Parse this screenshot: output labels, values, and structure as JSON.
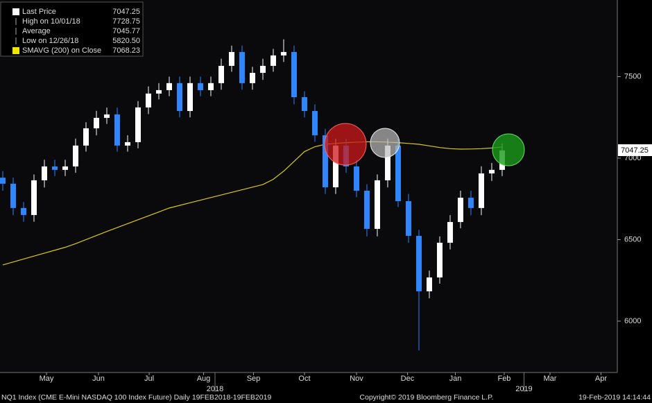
{
  "chart_data": {
    "type": "candlestick",
    "x": [
      0,
      1,
      2,
      3,
      4,
      5,
      6,
      7,
      8,
      9,
      10,
      11,
      12,
      13,
      14,
      15,
      16,
      17,
      18,
      19,
      20,
      21,
      22,
      23,
      24,
      25,
      26,
      27,
      28,
      29,
      30,
      31,
      32,
      33,
      34,
      35,
      36,
      37,
      38,
      39,
      40,
      41,
      42,
      43,
      44,
      45,
      46,
      47,
      48
    ],
    "open": [
      6880,
      6843,
      6694,
      6651,
      6864,
      6949,
      6928,
      6949,
      7077,
      7183,
      7247,
      7268,
      7077,
      7098,
      7311,
      7396,
      7417,
      7460,
      7289,
      7460,
      7417,
      7460,
      7566,
      7651,
      7460,
      7523,
      7566,
      7630,
      7651,
      7374,
      7289,
      7140,
      6821,
      7077,
      6949,
      6800,
      6566,
      6864,
      7077,
      6736,
      6523,
      6183,
      6268,
      6481,
      6608,
      6757,
      6694,
      6906,
      6928
    ],
    "high": [
      6920,
      6880,
      6730,
      6900,
      6990,
      6990,
      6990,
      7120,
      7220,
      7290,
      7310,
      7310,
      7140,
      7350,
      7440,
      7460,
      7500,
      7500,
      7500,
      7500,
      7500,
      7610,
      7690,
      7690,
      7560,
      7610,
      7670,
      7728.75,
      7690,
      7410,
      7330,
      7180,
      7120,
      7120,
      6990,
      6840,
      6900,
      7120,
      7120,
      6780,
      6560,
      6310,
      6520,
      6650,
      6800,
      6800,
      6950,
      6970,
      7090
    ],
    "low": [
      6800,
      6650,
      6610,
      6610,
      6820,
      6890,
      6890,
      6910,
      7040,
      7140,
      7210,
      7040,
      7040,
      7060,
      7270,
      7360,
      7380,
      7250,
      7250,
      7380,
      7380,
      7420,
      7530,
      7420,
      7420,
      7480,
      7530,
      7590,
      7330,
      7250,
      7100,
      6780,
      6780,
      6910,
      6760,
      6520,
      6520,
      6820,
      6700,
      6480,
      5820.5,
      6140,
      6230,
      6440,
      6570,
      6650,
      6650,
      6860,
      6890
    ],
    "close": [
      6843,
      6694,
      6651,
      6864,
      6949,
      6928,
      6949,
      7077,
      7183,
      7247,
      7268,
      7077,
      7098,
      7311,
      7396,
      7417,
      7460,
      7289,
      7460,
      7417,
      7460,
      7566,
      7651,
      7460,
      7523,
      7566,
      7630,
      7651,
      7374,
      7289,
      7140,
      6821,
      7077,
      6949,
      6800,
      6566,
      6864,
      7077,
      6736,
      6523,
      6183,
      6268,
      6481,
      6608,
      6757,
      6694,
      6906,
      6928,
      7047.25
    ],
    "up_color": "#ffffff",
    "down_color": "#2f86ff",
    "sma": {
      "color": "#d8cc1e",
      "values": [
        6345,
        6363,
        6381,
        6399,
        6417,
        6435,
        6453,
        6475,
        6500,
        6525,
        6550,
        6574,
        6598,
        6622,
        6646,
        6670,
        6694,
        6710,
        6726,
        6742,
        6758,
        6774,
        6790,
        6806,
        6822,
        6838,
        6870,
        6920,
        6980,
        7040,
        7070,
        7085,
        7090,
        7095,
        7098,
        7100,
        7100,
        7098,
        7095,
        7090,
        7085,
        7075,
        7065,
        7058,
        7055,
        7056,
        7058,
        7062,
        7068.23
      ]
    },
    "legend": [
      {
        "label": "Last Price",
        "value": "7047.25",
        "color": "#ffffff"
      },
      {
        "label": "High on 10/01/18",
        "value": "7728.75"
      },
      {
        "label": "Average",
        "value": "7045.77"
      },
      {
        "label": "Low on 12/26/18",
        "value": "5820.50"
      },
      {
        "label": "SMAVG (200)  on Close",
        "value": "7068.23",
        "color": "#f2e600"
      }
    ],
    "xlim": [
      -0.267,
      59.07
    ],
    "ylim": [
      5685,
      7970
    ],
    "yticks": [
      6000,
      6500,
      7000,
      7500
    ],
    "xticks": [
      {
        "value": 4.2,
        "label": "May"
      },
      {
        "value": 9.2,
        "label": "Jun"
      },
      {
        "value": 14.07,
        "label": "Jul"
      },
      {
        "value": 19.3,
        "label": "Aug"
      },
      {
        "value": 24.1,
        "label": "Sep"
      },
      {
        "value": 29.0,
        "label": "Oct"
      },
      {
        "value": 34.0,
        "label": "Nov"
      },
      {
        "value": 38.9,
        "label": "Dec"
      },
      {
        "value": 43.5,
        "label": "Jan"
      },
      {
        "value": 48.2,
        "label": "Feb"
      },
      {
        "value": 52.6,
        "label": "Mar"
      },
      {
        "value": 57.5,
        "label": "Apr"
      }
    ],
    "year_labels": [
      {
        "value": 20.4,
        "label": "2018"
      },
      {
        "value": 50.1,
        "label": "2019"
      }
    ],
    "grid": false,
    "footer": {
      "left": "NQ1 Index (CME E-Mini NASDAQ 100 Index Future)  Daily 19FEB2018-19FEB2019",
      "center": "Copyright© 2019 Bloomberg Finance L.P.",
      "right": "19-Feb-2019 14:14:44"
    }
  }
}
